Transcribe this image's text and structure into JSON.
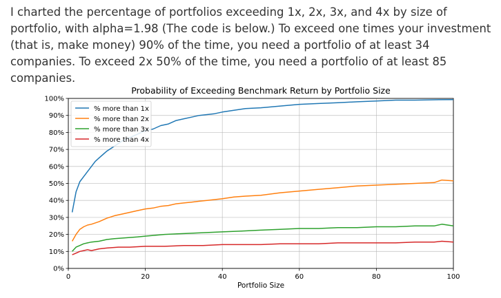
{
  "post": {
    "text": "I charted the percentage of portfolios exceeding 1x, 2x, 3x, and 4x by size of portfolio, with alpha=1.98 (The code is below.) To exceed one times your investment (that is, make money) 90% of the time, you need a portfolio of at least 34 companies. To exceed 2x 50% of the time, you need a portfolio of at least 85 companies."
  },
  "chart_data": {
    "type": "line",
    "title": "Probability of Exceeding Benchmark Return by Portfolio Size",
    "xlabel": "Portfolio Size",
    "ylabel": "",
    "xlim": [
      0,
      100
    ],
    "ylim": [
      0,
      100
    ],
    "xticks": [
      0,
      20,
      40,
      60,
      80,
      100
    ],
    "xtick_labels": [
      "0",
      "20",
      "40",
      "60",
      "80",
      "100"
    ],
    "yticks": [
      0,
      10,
      20,
      30,
      40,
      50,
      60,
      70,
      80,
      90,
      100
    ],
    "ytick_labels": [
      "0%",
      "10%",
      "20%",
      "30%",
      "40%",
      "50%",
      "60%",
      "70%",
      "80%",
      "90%",
      "100%"
    ],
    "grid": true,
    "legend_position": "top-left",
    "series": [
      {
        "name": "% more than 1x",
        "color": "#1f77b4",
        "x": [
          1,
          2,
          3,
          4,
          5,
          6,
          7,
          8,
          9,
          10,
          12,
          14,
          16,
          18,
          20,
          22,
          24,
          26,
          28,
          30,
          32,
          34,
          36,
          38,
          40,
          43,
          46,
          50,
          55,
          60,
          65,
          70,
          75,
          80,
          85,
          90,
          95,
          100
        ],
        "values": [
          33,
          45,
          51,
          54,
          57,
          60,
          63,
          65,
          67,
          69,
          72,
          75,
          77,
          79,
          81,
          82,
          84,
          85,
          87,
          88,
          89,
          90,
          90.5,
          91,
          92,
          93,
          94,
          94.5,
          95.5,
          96.5,
          97,
          97.5,
          98,
          98.5,
          99,
          99,
          99.2,
          99.3
        ]
      },
      {
        "name": "% more than 2x",
        "color": "#ff7f0e",
        "x": [
          1,
          2,
          3,
          4,
          5,
          6,
          8,
          10,
          12,
          14,
          16,
          18,
          20,
          22,
          24,
          26,
          28,
          30,
          32,
          34,
          36,
          38,
          40,
          43,
          46,
          50,
          55,
          60,
          65,
          70,
          75,
          80,
          85,
          90,
          95,
          97,
          100
        ],
        "values": [
          16,
          20,
          23,
          24.5,
          25.5,
          26,
          27.5,
          29.5,
          31,
          32,
          33,
          34,
          35,
          35.5,
          36.5,
          37,
          38,
          38.5,
          39,
          39.5,
          40,
          40.5,
          41,
          42,
          42.5,
          43,
          44.5,
          45.5,
          46.5,
          47.5,
          48.5,
          49,
          49.5,
          50,
          50.5,
          52,
          51.5
        ]
      },
      {
        "name": "% more than 3x",
        "color": "#2ca02c",
        "x": [
          1,
          2,
          3,
          4,
          5,
          6,
          8,
          10,
          12,
          15,
          18,
          20,
          25,
          30,
          35,
          40,
          45,
          50,
          55,
          60,
          65,
          70,
          75,
          80,
          85,
          90,
          95,
          97,
          100
        ],
        "values": [
          10,
          12.5,
          13.5,
          14.5,
          15,
          15.5,
          16,
          17,
          17.5,
          18,
          18.5,
          19,
          20,
          20.5,
          21,
          21.5,
          22,
          22.5,
          23,
          23.5,
          23.5,
          24,
          24,
          24.5,
          24.5,
          25,
          25,
          26,
          25
        ]
      },
      {
        "name": "% more than 4x",
        "color": "#d62728",
        "x": [
          1,
          2,
          3,
          4,
          5,
          6,
          8,
          10,
          13,
          16,
          20,
          25,
          30,
          35,
          40,
          45,
          50,
          55,
          60,
          65,
          70,
          75,
          80,
          85,
          90,
          95,
          97,
          100
        ],
        "values": [
          8,
          9,
          10,
          10.5,
          11,
          10.5,
          11.5,
          12,
          12.5,
          12.5,
          13,
          13,
          13.5,
          13.5,
          14,
          14,
          14,
          14.5,
          14.5,
          14.5,
          15,
          15,
          15,
          15,
          15.5,
          15.5,
          16,
          15.5
        ]
      }
    ]
  }
}
